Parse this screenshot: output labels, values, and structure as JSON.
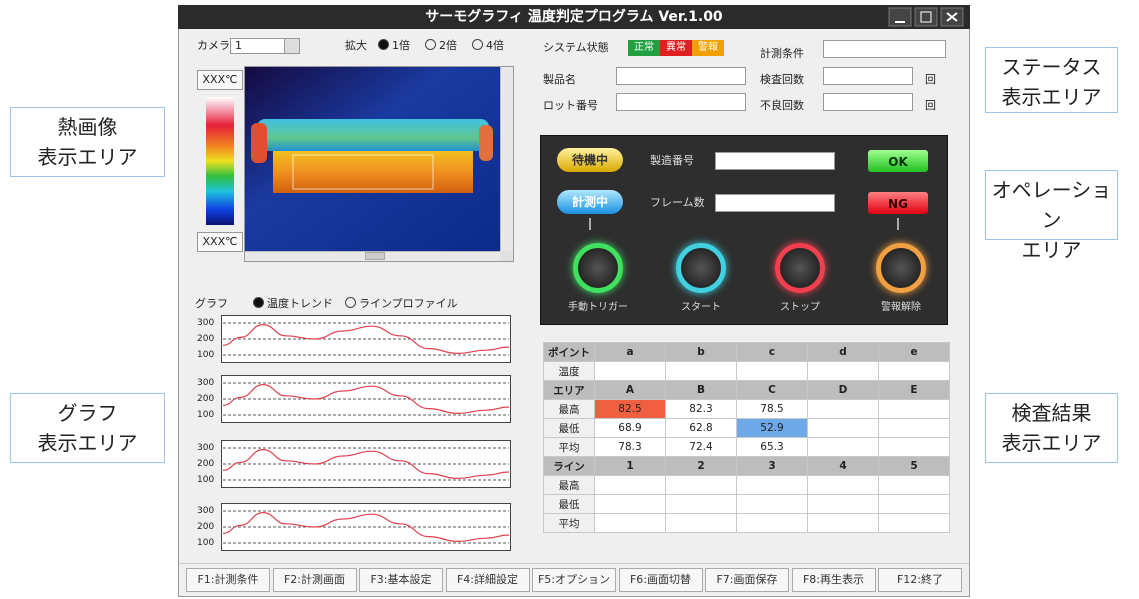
{
  "window": {
    "title": "サーモグラフィ 温度判定プログラム Ver.1.00"
  },
  "callouts": [
    {
      "lines": [
        "熱画像",
        "表示エリア"
      ]
    },
    {
      "lines": [
        "グラフ",
        "表示エリア"
      ]
    },
    {
      "lines": [
        "ステータス",
        "表示エリア"
      ]
    },
    {
      "lines": [
        "オペレーション",
        "エリア"
      ]
    },
    {
      "lines": [
        "検査結果",
        "表示エリア"
      ]
    }
  ],
  "thermal": {
    "camera_label": "カメラ",
    "camera_value": "1",
    "zoom_label": "拡大",
    "zoom_options": [
      "1倍",
      "2倍",
      "4倍"
    ],
    "scale_max": "XXX℃",
    "scale_min": "XXX℃"
  },
  "status": {
    "system_label": "システム状態",
    "states": [
      "正常",
      "異常",
      "警報"
    ],
    "product_label": "製品名",
    "lot_label": "ロット番号",
    "condition_label": "計測条件",
    "inspection_label": "検査回数",
    "defect_label": "不良回数",
    "count_unit": "回"
  },
  "operation": {
    "standby": "待機中",
    "measuring": "計測中",
    "serial_label": "製造番号",
    "frame_label": "フレーム数",
    "ok": "OK",
    "ng": "NG",
    "buttons": [
      "手動トリガー",
      "スタート",
      "ストップ",
      "警報解除"
    ]
  },
  "graph": {
    "label": "グラフ",
    "modes": [
      "温度トレンド",
      "ラインプロファイル"
    ],
    "ticks": [
      300,
      200,
      100
    ]
  },
  "results": {
    "rows": [
      [
        "ポイント",
        "a",
        "b",
        "c",
        "d",
        "e"
      ],
      [
        "温度"
      ],
      [
        "エリア",
        "A",
        "B",
        "C",
        "D",
        "E"
      ],
      [
        "最高",
        "82.5",
        "82.3",
        "78.5"
      ],
      [
        "最低",
        "68.9",
        "62.8",
        "52.9"
      ],
      [
        "平均",
        "78.3",
        "72.4",
        "65.3"
      ],
      [
        "ライン",
        "1",
        "2",
        "3",
        "4",
        "5"
      ],
      [
        "最高"
      ],
      [
        "最低"
      ],
      [
        "平均"
      ]
    ]
  },
  "function_keys": [
    "F1:計測条件",
    "F2:計測画面",
    "F3:基本設定",
    "F4:詳細設定",
    "F5:オプション",
    "F6:画面切替",
    "F7:画面保存",
    "F8:再生表示",
    "F12:終了"
  ]
}
